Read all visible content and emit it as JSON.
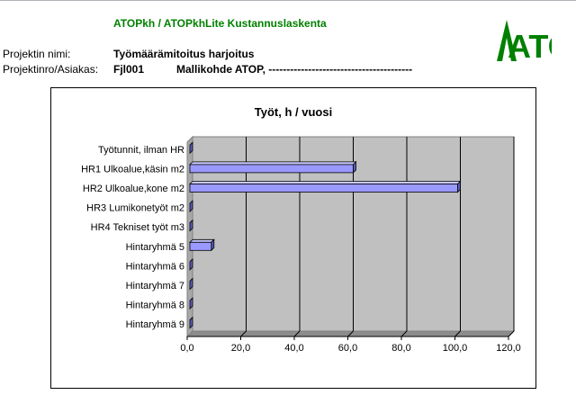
{
  "app_title": "ATOPkh  / ATOPkhLite Kustannuslaskenta",
  "logo_text": "ATOP",
  "brand_color": "#008000",
  "project": {
    "name_label": "Projektin nimi:",
    "name_value": "Työmäärämitoitus harjoitus",
    "number_label": "Projektinro/Asiakas:",
    "number_value": "Fjl001",
    "client_value": "Mallikohde ATOP, ----------------------------------------"
  },
  "chart_data": {
    "type": "bar",
    "orientation": "horizontal",
    "title": "Työt,  h / vuosi",
    "categories": [
      "Työtunnit, ilman HR",
      "HR1 Ulkoalue,käsin m2",
      "HR2 Ulkoalue,kone m2",
      "HR3 Lumikonetyöt m2",
      "HR4 Tekniset työt m3",
      "Hintaryhmä 5",
      "Hintaryhmä 6",
      "Hintaryhmä 7",
      "Hintaryhmä 8",
      "Hintaryhmä 9"
    ],
    "values": [
      0,
      61,
      100,
      0,
      0,
      8,
      0,
      0,
      0,
      0
    ],
    "xlim": [
      0,
      120
    ],
    "ticks": [
      "0,0",
      "20,0",
      "40,0",
      "60,0",
      "80,0",
      "100,0",
      "120,0"
    ],
    "tick_values": [
      0,
      20,
      40,
      60,
      80,
      100,
      120
    ],
    "bar_color": "#9999ff",
    "plot_background": "#c0c0c0",
    "grid": true,
    "legend": false
  }
}
